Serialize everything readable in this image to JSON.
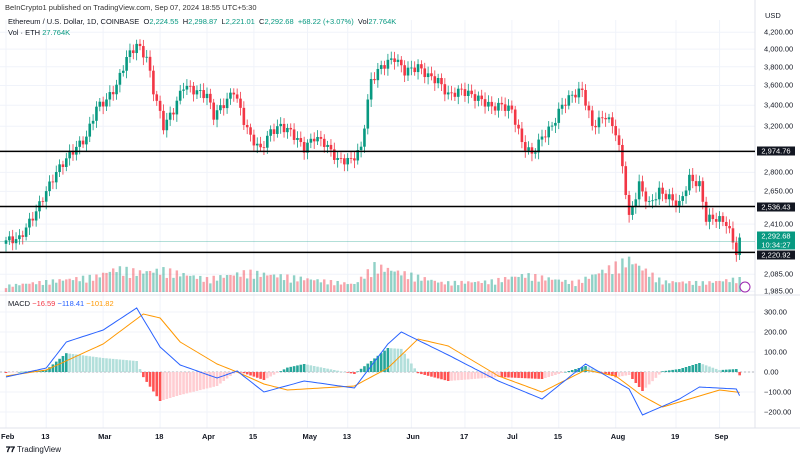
{
  "header": {
    "published": "BeInCrypto1 published on TradingView.com, Sep 07, 2024 18:55 UTC+5:30",
    "symbol": "Ethereum / U.S. Dollar, 1D, COINBASE",
    "o_label": "O",
    "o": "2,224.55",
    "h_label": "H",
    "h": "2,298.87",
    "l_label": "L",
    "l": "2,221.01",
    "c_label": "C",
    "c": "2,292.68",
    "change": "+68.22 (+3.07%)",
    "vol_label": "Vol",
    "vol": "27.764K",
    "vol2_label": "Vol · ETH",
    "vol2": "27.764K"
  },
  "footer": {
    "brand": "TradingView"
  },
  "colors": {
    "up": "#089981",
    "down": "#f23645",
    "macd": "#2962ff",
    "signal": "#ff9800",
    "level": "#000000"
  },
  "chart_data": [
    {
      "type": "candlestick",
      "title": "Ethereum / U.S. Dollar, 1D, COINBASE",
      "currency": "USD",
      "scale": "log",
      "grid": true,
      "yticks": [
        "4,200.00",
        "4,000.00",
        "3,800.00",
        "3,600.00",
        "3,400.00",
        "3,200.00",
        "2,800.00",
        "2,650.00",
        "2,410.00",
        "2,085.00",
        "1,985.00"
      ],
      "ytick_values": [
        4200,
        4000,
        3800,
        3600,
        3400,
        3200,
        2800,
        2650,
        2410,
        2085,
        1985
      ],
      "levels": [
        {
          "value": 2974.76,
          "label": "2,974.76"
        },
        {
          "value": 2536.43,
          "label": "2,536.43"
        },
        {
          "value": 2220.92,
          "label": "2,220.92"
        }
      ],
      "last_price": {
        "value": 2292.68,
        "label": "2,292.68",
        "countdown": "10:34:27"
      },
      "xticks": [
        {
          "date": "2024-02-01",
          "label": "Feb"
        },
        {
          "date": "2024-02-13",
          "label": "13"
        },
        {
          "date": "2024-03-01",
          "label": "Mar"
        },
        {
          "date": "2024-03-18",
          "label": "18"
        },
        {
          "date": "2024-04-01",
          "label": "Apr"
        },
        {
          "date": "2024-04-15",
          "label": "15"
        },
        {
          "date": "2024-05-01",
          "label": "May"
        },
        {
          "date": "2024-05-13",
          "label": "13"
        },
        {
          "date": "2024-06-01",
          "label": "Jun"
        },
        {
          "date": "2024-06-17",
          "label": "17"
        },
        {
          "date": "2024-07-01",
          "label": "Jul"
        },
        {
          "date": "2024-07-15",
          "label": "15"
        },
        {
          "date": "2024-08-01",
          "label": "Aug"
        },
        {
          "date": "2024-08-19",
          "label": "19"
        },
        {
          "date": "2024-09-01",
          "label": "Sep"
        }
      ],
      "closes": [
        [
          "2024-02-01",
          2300
        ],
        [
          "2024-02-05",
          2310
        ],
        [
          "2024-02-10",
          2500
        ],
        [
          "2024-02-13",
          2650
        ],
        [
          "2024-02-16",
          2800
        ],
        [
          "2024-02-20",
          2950
        ],
        [
          "2024-02-25",
          3100
        ],
        [
          "2024-02-28",
          3380
        ],
        [
          "2024-03-02",
          3450
        ],
        [
          "2024-03-05",
          3600
        ],
        [
          "2024-03-08",
          3900
        ],
        [
          "2024-03-11",
          4050
        ],
        [
          "2024-03-14",
          3900
        ],
        [
          "2024-03-16",
          3550
        ],
        [
          "2024-03-19",
          3200
        ],
        [
          "2024-03-22",
          3350
        ],
        [
          "2024-03-25",
          3600
        ],
        [
          "2024-03-28",
          3550
        ],
        [
          "2024-04-01",
          3500
        ],
        [
          "2024-04-03",
          3300
        ],
        [
          "2024-04-07",
          3450
        ],
        [
          "2024-04-09",
          3550
        ],
        [
          "2024-04-12",
          3250
        ],
        [
          "2024-04-14",
          3100
        ],
        [
          "2024-04-17",
          2990
        ],
        [
          "2024-04-20",
          3150
        ],
        [
          "2024-04-23",
          3200
        ],
        [
          "2024-04-26",
          3150
        ],
        [
          "2024-04-30",
          3000
        ],
        [
          "2024-05-03",
          3100
        ],
        [
          "2024-05-06",
          3050
        ],
        [
          "2024-05-10",
          2900
        ],
        [
          "2024-05-14",
          2900
        ],
        [
          "2024-05-17",
          3000
        ],
        [
          "2024-05-20",
          3650
        ],
        [
          "2024-05-23",
          3800
        ],
        [
          "2024-05-27",
          3900
        ],
        [
          "2024-05-30",
          3750
        ],
        [
          "2024-06-03",
          3800
        ],
        [
          "2024-06-06",
          3700
        ],
        [
          "2024-06-09",
          3650
        ],
        [
          "2024-06-12",
          3500
        ],
        [
          "2024-06-16",
          3550
        ],
        [
          "2024-06-19",
          3500
        ],
        [
          "2024-06-22",
          3450
        ],
        [
          "2024-06-25",
          3380
        ],
        [
          "2024-06-28",
          3400
        ],
        [
          "2024-07-01",
          3350
        ],
        [
          "2024-07-04",
          3050
        ],
        [
          "2024-07-07",
          2950
        ],
        [
          "2024-07-10",
          3100
        ],
        [
          "2024-07-13",
          3200
        ],
        [
          "2024-07-16",
          3400
        ],
        [
          "2024-07-19",
          3500
        ],
        [
          "2024-07-22",
          3550
        ],
        [
          "2024-07-25",
          3200
        ],
        [
          "2024-07-29",
          3300
        ],
        [
          "2024-08-01",
          3150
        ],
        [
          "2024-08-03",
          2850
        ],
        [
          "2024-08-05",
          2450
        ],
        [
          "2024-08-08",
          2700
        ],
        [
          "2024-08-11",
          2550
        ],
        [
          "2024-08-14",
          2650
        ],
        [
          "2024-08-17",
          2600
        ],
        [
          "2024-08-20",
          2550
        ],
        [
          "2024-08-23",
          2750
        ],
        [
          "2024-08-26",
          2700
        ],
        [
          "2024-08-28",
          2450
        ],
        [
          "2024-08-31",
          2450
        ],
        [
          "2024-09-03",
          2420
        ],
        [
          "2024-09-06",
          2225
        ],
        [
          "2024-09-07",
          2292.68
        ]
      ],
      "volume_k": [
        [
          "2024-02-01",
          120
        ],
        [
          "2024-02-13",
          200
        ],
        [
          "2024-02-28",
          300
        ],
        [
          "2024-03-05",
          450
        ],
        [
          "2024-03-12",
          380
        ],
        [
          "2024-03-19",
          420
        ],
        [
          "2024-04-01",
          250
        ],
        [
          "2024-04-13",
          380
        ],
        [
          "2024-05-01",
          250
        ],
        [
          "2024-05-15",
          150
        ],
        [
          "2024-05-21",
          500
        ],
        [
          "2024-06-10",
          180
        ],
        [
          "2024-06-24",
          200
        ],
        [
          "2024-07-05",
          330
        ],
        [
          "2024-07-20",
          180
        ],
        [
          "2024-08-05",
          620
        ],
        [
          "2024-08-15",
          200
        ],
        [
          "2024-08-28",
          180
        ],
        [
          "2024-09-06",
          250
        ]
      ]
    },
    {
      "type": "line",
      "title": "MACD",
      "legend": {
        "hist": "−16.59",
        "macd": "−118.41",
        "signal": "−101.82"
      },
      "yticks": [
        "300.00",
        "200.00",
        "100.00",
        "0.00",
        "−100.00",
        "−200.00"
      ],
      "ytick_values": [
        300,
        200,
        100,
        0,
        -100,
        -200
      ],
      "macd": [
        [
          "2024-02-01",
          -25
        ],
        [
          "2024-02-13",
          20
        ],
        [
          "2024-02-19",
          150
        ],
        [
          "2024-03-01",
          210
        ],
        [
          "2024-03-11",
          320
        ],
        [
          "2024-03-18",
          125
        ],
        [
          "2024-03-24",
          35
        ],
        [
          "2024-04-04",
          -30
        ],
        [
          "2024-04-10",
          5
        ],
        [
          "2024-04-18",
          -100
        ],
        [
          "2024-04-30",
          -45
        ],
        [
          "2024-05-15",
          -80
        ],
        [
          "2024-05-25",
          140
        ],
        [
          "2024-05-29",
          200
        ],
        [
          "2024-06-12",
          85
        ],
        [
          "2024-06-27",
          -45
        ],
        [
          "2024-07-10",
          -135
        ],
        [
          "2024-07-23",
          40
        ],
        [
          "2024-08-05",
          -85
        ],
        [
          "2024-08-09",
          -215
        ],
        [
          "2024-08-20",
          -135
        ],
        [
          "2024-08-26",
          -75
        ],
        [
          "2024-09-06",
          -85
        ],
        [
          "2024-09-07",
          -118.41
        ]
      ],
      "signal": [
        [
          "2024-02-01",
          -20
        ],
        [
          "2024-02-13",
          10
        ],
        [
          "2024-03-01",
          140
        ],
        [
          "2024-03-13",
          290
        ],
        [
          "2024-03-18",
          270
        ],
        [
          "2024-03-24",
          150
        ],
        [
          "2024-04-04",
          40
        ],
        [
          "2024-04-10",
          0
        ],
        [
          "2024-04-18",
          -60
        ],
        [
          "2024-04-25",
          -90
        ],
        [
          "2024-05-15",
          -70
        ],
        [
          "2024-05-25",
          20
        ],
        [
          "2024-06-03",
          165
        ],
        [
          "2024-06-12",
          130
        ],
        [
          "2024-06-27",
          -20
        ],
        [
          "2024-07-10",
          -100
        ],
        [
          "2024-07-23",
          10
        ],
        [
          "2024-08-01",
          -20
        ],
        [
          "2024-08-09",
          -120
        ],
        [
          "2024-08-15",
          -175
        ],
        [
          "2024-08-26",
          -120
        ],
        [
          "2024-09-01",
          -90
        ],
        [
          "2024-09-07",
          -101.82
        ]
      ]
    }
  ]
}
